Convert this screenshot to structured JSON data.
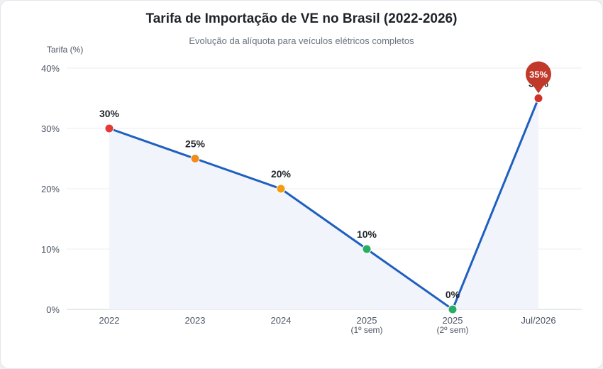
{
  "chart_data": {
    "type": "line",
    "title": "Tarifa de Importação de VE no Brasil (2022-2026)",
    "subtitle": "Evolução da alíquota para veículos elétricos completos",
    "ylabel": "Tarifa (%)",
    "xlabel": "",
    "ylim": [
      0,
      40
    ],
    "yticks": [
      "0%",
      "10%",
      "20%",
      "30%",
      "40%"
    ],
    "categories": [
      [
        "2022"
      ],
      [
        "2023"
      ],
      [
        "2024"
      ],
      [
        "2025",
        "(1º sem)"
      ],
      [
        "2025",
        "(2º sem)"
      ],
      [
        "Jul/2026"
      ]
    ],
    "series": [
      {
        "values": [
          30,
          25,
          20,
          10,
          0,
          35
        ],
        "labels": [
          "30%",
          "25%",
          "20%",
          "10%",
          "0%",
          "35%"
        ],
        "point_colors": [
          "#e53935",
          "#f28c1b",
          "#f39c12",
          "#27ae60",
          "#27ae60",
          "#d0312d"
        ],
        "line_color": "#1f5fbf"
      }
    ],
    "highlight": {
      "index": 5,
      "label": "35%",
      "color": "#c0392b"
    },
    "grid": true,
    "area_fill": "#f1f4fa"
  }
}
